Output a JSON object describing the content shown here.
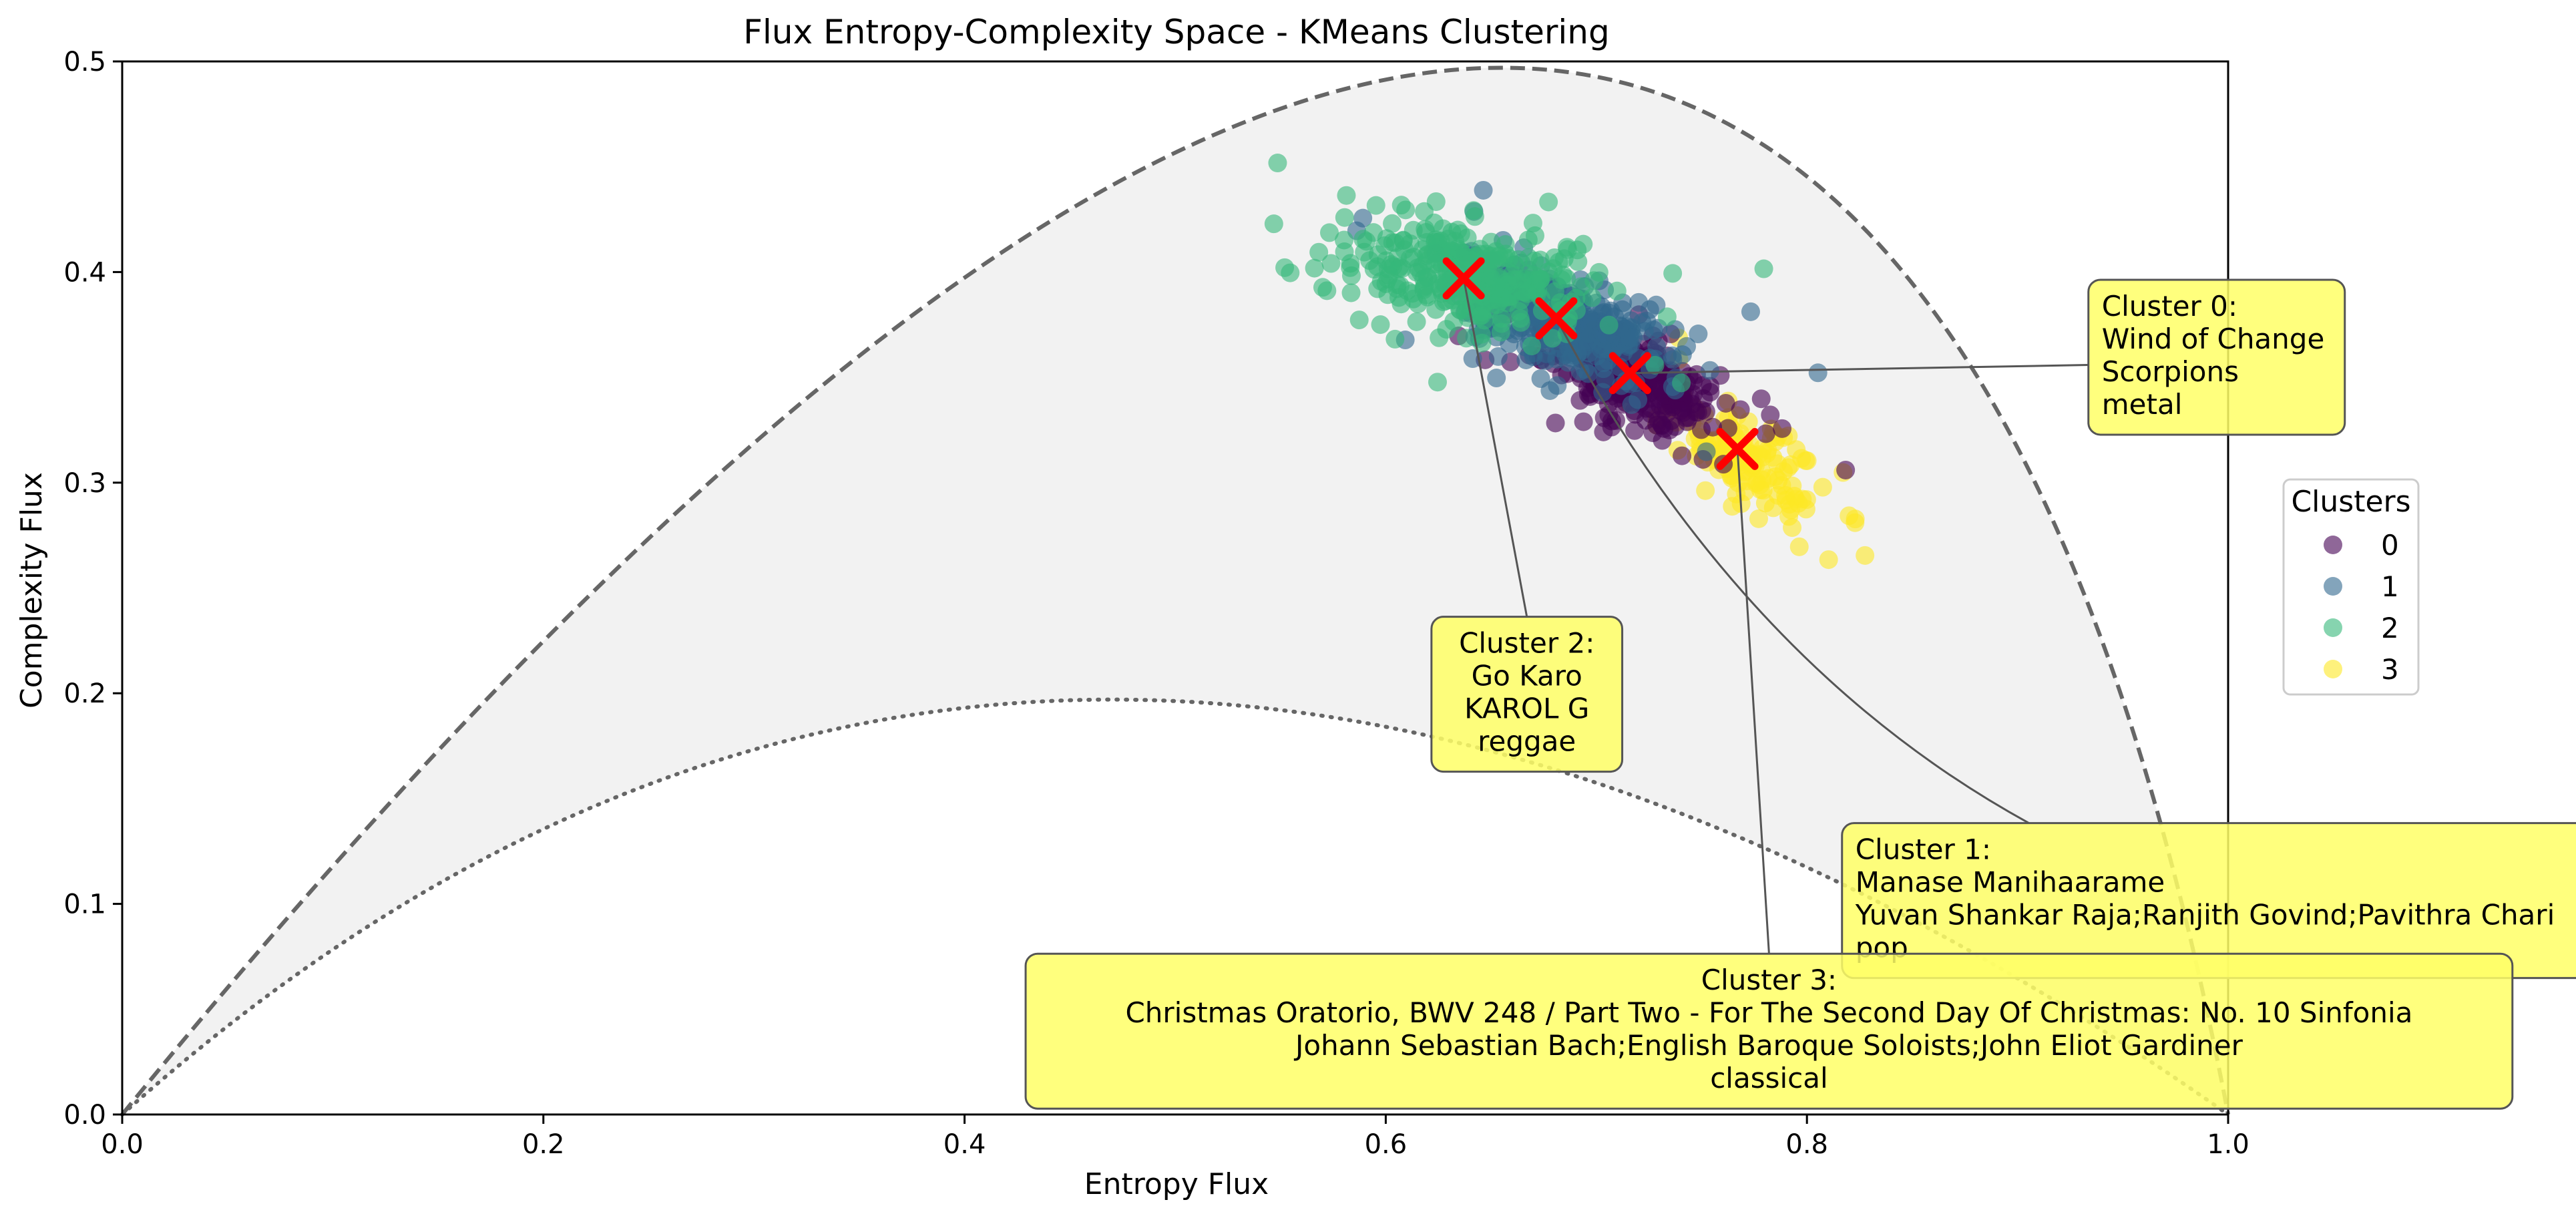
{
  "chart_data": {
    "type": "scatter",
    "title": "Flux Entropy-Complexity Space - KMeans Clustering",
    "xlabel": "Entropy Flux",
    "ylabel": "Complexity Flux",
    "xlim": [
      0.0,
      1.0
    ],
    "ylim": [
      0.0,
      0.5
    ],
    "x_ticks": [
      "0.0",
      "0.2",
      "0.4",
      "0.6",
      "0.8",
      "1.0"
    ],
    "y_ticks": [
      "0.0",
      "0.1",
      "0.2",
      "0.3",
      "0.4",
      "0.5"
    ],
    "grid": false,
    "legend": {
      "title": "Clusters",
      "placement": "right"
    },
    "bounds": {
      "upper_style": "dashed",
      "lower_style": "dotted",
      "upper_peak": [
        0.655,
        0.497
      ],
      "lower_peak": [
        0.47,
        0.197
      ],
      "color": "#666666",
      "fill": "#f2f2f2"
    },
    "series": [
      {
        "name": "0",
        "color": "#440154",
        "center": [
          0.715,
          0.35
        ],
        "spread": [
          0.02,
          0.01
        ],
        "tilt": -0.35,
        "count": 300,
        "centroid": [
          0.716,
          0.352
        ]
      },
      {
        "name": "1",
        "color": "#31688e",
        "center": [
          0.682,
          0.378
        ],
        "spread": [
          0.026,
          0.011
        ],
        "tilt": -0.3,
        "count": 340,
        "centroid": [
          0.681,
          0.378
        ]
      },
      {
        "name": "2",
        "color": "#35b779",
        "center": [
          0.64,
          0.398
        ],
        "spread": [
          0.028,
          0.012
        ],
        "tilt": -0.15,
        "count": 320,
        "centroid": [
          0.637,
          0.397
        ]
      },
      {
        "name": "3",
        "color": "#fde725",
        "center": [
          0.77,
          0.312
        ],
        "spread": [
          0.02,
          0.011
        ],
        "tilt": -0.6,
        "count": 140,
        "centroid": [
          0.767,
          0.316
        ]
      }
    ],
    "annotations": [
      {
        "cluster": "0",
        "lines": [
          "Cluster 0:",
          "Wind of Change",
          "Scorpions",
          "metal"
        ],
        "align": "left",
        "box_anchor": [
          0.94,
          0.39
        ],
        "connector": "straight"
      },
      {
        "cluster": "1",
        "lines": [
          "Cluster 1:",
          "Manase Manihaarame",
          "Yuvan Shankar Raja;Ranjith Govind;Pavithra Chari",
          "pop"
        ],
        "align": "left",
        "box_anchor": [
          0.823,
          0.132
        ],
        "connector": "arc"
      },
      {
        "cluster": "2",
        "lines": [
          "Cluster 2:",
          "Go Karo",
          "KAROL G",
          "reggae"
        ],
        "align": "center",
        "box_anchor": [
          0.667,
          0.23
        ],
        "connector": "straight"
      },
      {
        "cluster": "3",
        "lines": [
          "Cluster 3:",
          "Christmas Oratorio, BWV 248 / Part Two - For The Second Day Of Christmas: No. 10 Sinfonia",
          "Johann Sebastian Bach;English Baroque Soloists;John Eliot Gardiner",
          "classical"
        ],
        "align": "center",
        "box_anchor": [
          0.782,
          0.07
        ],
        "connector": "straight"
      }
    ],
    "annotation_style": {
      "box_fill": "#ffff66",
      "box_opacity": 0.85,
      "box_stroke": "#555555",
      "connector_color": "#555555"
    },
    "centroid_style": {
      "marker": "x",
      "color": "#ff0000"
    }
  }
}
